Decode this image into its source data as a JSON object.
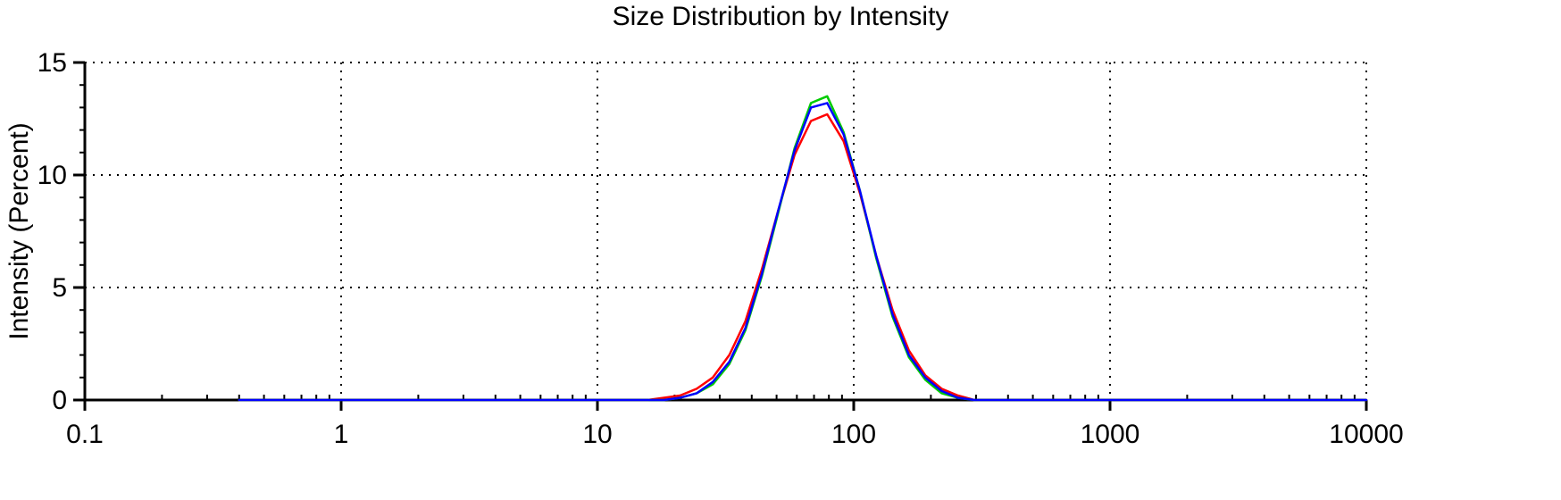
{
  "chart_data": {
    "type": "line",
    "title": "Size Distribution by Intensity",
    "xlabel": "",
    "ylabel": "Intensity (Percent)",
    "x_scale": "log",
    "xlim": [
      0.1,
      10000
    ],
    "ylim": [
      0,
      15
    ],
    "x_ticks": [
      0.1,
      1,
      10,
      100,
      1000,
      10000
    ],
    "x_tick_labels": [
      "0.1",
      "1",
      "10",
      "100",
      "1000",
      "10000"
    ],
    "y_ticks": [
      0,
      5,
      10,
      15
    ],
    "y_tick_labels": [
      "0",
      "5",
      "10",
      "15"
    ],
    "grid": "dotted",
    "legend": "none",
    "background_color": "#ffffff",
    "axis_color": "#000000",
    "grid_color": "#000000",
    "x": [
      0.4,
      0.5,
      0.7,
      1,
      1.5,
      2,
      3,
      5,
      8,
      11,
      13.5,
      15.7,
      18.2,
      21.0,
      24.4,
      28.2,
      32.7,
      37.8,
      43.8,
      50.7,
      58.8,
      68.1,
      78.8,
      91.3,
      105.7,
      122.4,
      141.8,
      164.2,
      190.1,
      220.2,
      255.0,
      295.3,
      342.0,
      458,
      712,
      1106,
      1718,
      2669,
      4145,
      6439,
      10000
    ],
    "series": [
      {
        "name": "red",
        "color": "#ff0000",
        "peak_intensity_percent": 12.7,
        "values": [
          0,
          0,
          0,
          0,
          0,
          0,
          0,
          0,
          0,
          0,
          0,
          0,
          0.1,
          0.2,
          0.5,
          1.0,
          2.0,
          3.5,
          5.8,
          8.4,
          10.9,
          12.4,
          12.7,
          11.5,
          9.2,
          6.4,
          4.0,
          2.2,
          1.1,
          0.5,
          0.2,
          0,
          0,
          0,
          0,
          0,
          0,
          0,
          0,
          0,
          0
        ]
      },
      {
        "name": "green",
        "color": "#00cc00",
        "peak_intensity_percent": 13.5,
        "values": [
          0,
          0,
          0,
          0,
          0,
          0,
          0,
          0,
          0,
          0,
          0,
          0,
          0,
          0.1,
          0.3,
          0.7,
          1.6,
          3.1,
          5.5,
          8.3,
          11.2,
          13.2,
          13.5,
          11.9,
          9.3,
          6.3,
          3.7,
          1.9,
          0.9,
          0.3,
          0.1,
          0,
          0,
          0,
          0,
          0,
          0,
          0,
          0,
          0,
          0
        ]
      },
      {
        "name": "blue",
        "color": "#0000ff",
        "peak_intensity_percent": 13.2,
        "values": [
          0,
          0,
          0,
          0,
          0,
          0,
          0,
          0,
          0,
          0,
          0,
          0,
          0,
          0.1,
          0.3,
          0.8,
          1.7,
          3.2,
          5.6,
          8.4,
          11.1,
          13.0,
          13.2,
          11.8,
          9.3,
          6.4,
          3.8,
          2.0,
          1.0,
          0.4,
          0.1,
          0,
          0,
          0,
          0,
          0,
          0,
          0,
          0,
          0,
          0
        ]
      }
    ]
  }
}
